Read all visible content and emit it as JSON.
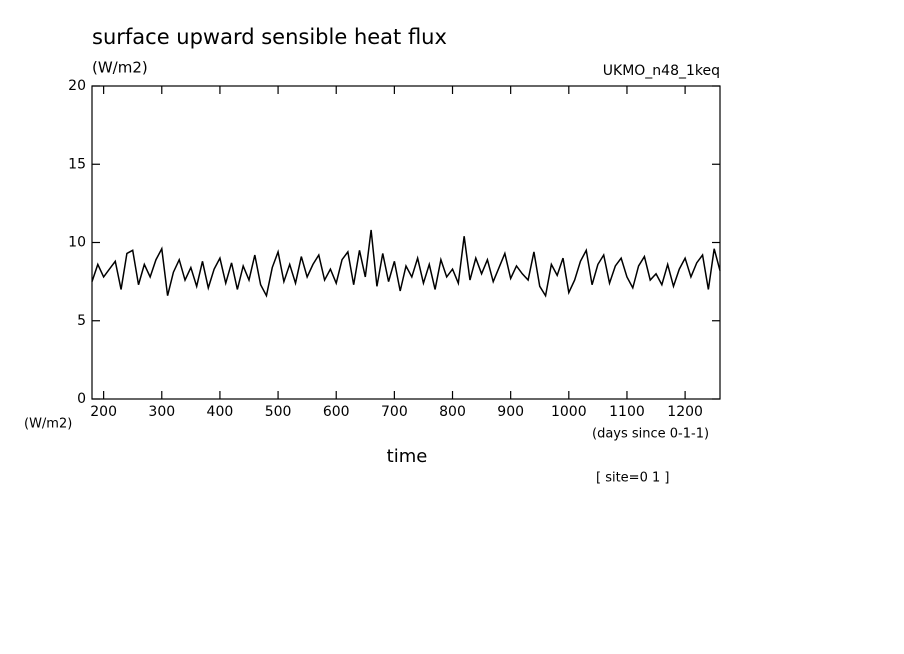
{
  "chart_data": {
    "type": "line",
    "title": "surface upward sensible heat flux",
    "y_unit": "(W/m2)",
    "model_label": "UKMO_n48_1keq",
    "y_axis_label": "(W/m2)",
    "x_unit": "(days since 0-1-1)",
    "x_axis_label": "time",
    "annotation": "[ site=0 1 ]",
    "color": "#000000",
    "xlim": [
      180,
      1260
    ],
    "ylim": [
      0,
      20
    ],
    "xticks": [
      200,
      300,
      400,
      500,
      600,
      700,
      800,
      900,
      1000,
      1100,
      1200
    ],
    "yticks": [
      0,
      5,
      10,
      15,
      20
    ],
    "x": [
      180,
      190,
      200,
      210,
      220,
      230,
      240,
      250,
      260,
      270,
      280,
      290,
      300,
      310,
      320,
      330,
      340,
      350,
      360,
      370,
      380,
      390,
      400,
      410,
      420,
      430,
      440,
      450,
      460,
      470,
      480,
      490,
      500,
      510,
      520,
      530,
      540,
      550,
      560,
      570,
      580,
      590,
      600,
      610,
      620,
      630,
      640,
      650,
      660,
      670,
      680,
      690,
      700,
      710,
      720,
      730,
      740,
      750,
      760,
      770,
      780,
      790,
      800,
      810,
      820,
      830,
      840,
      850,
      860,
      870,
      880,
      890,
      900,
      910,
      920,
      930,
      940,
      950,
      960,
      970,
      980,
      990,
      1000,
      1010,
      1020,
      1030,
      1040,
      1050,
      1060,
      1070,
      1080,
      1090,
      1100,
      1110,
      1120,
      1130,
      1140,
      1150,
      1160,
      1170,
      1180,
      1190,
      1200,
      1210,
      1220,
      1230,
      1240,
      1250,
      1260
    ],
    "values": [
      7.5,
      8.6,
      7.8,
      8.3,
      8.8,
      7.0,
      9.3,
      9.5,
      7.3,
      8.6,
      7.8,
      8.9,
      9.6,
      6.6,
      8.1,
      8.9,
      7.6,
      8.4,
      7.2,
      8.8,
      7.1,
      8.3,
      9.0,
      7.4,
      8.7,
      7.0,
      8.5,
      7.6,
      9.2,
      7.3,
      6.6,
      8.4,
      9.4,
      7.5,
      8.6,
      7.4,
      9.1,
      7.8,
      8.6,
      9.2,
      7.6,
      8.3,
      7.4,
      8.9,
      9.4,
      7.3,
      9.5,
      7.8,
      10.8,
      7.2,
      9.3,
      7.5,
      8.8,
      6.9,
      8.5,
      7.8,
      9.0,
      7.4,
      8.6,
      7.0,
      8.9,
      7.8,
      8.3,
      7.4,
      10.4,
      7.6,
      9.0,
      8.0,
      8.9,
      7.5,
      8.4,
      9.3,
      7.7,
      8.5,
      8.0,
      7.6,
      9.4,
      7.2,
      6.6,
      8.6,
      7.9,
      9.0,
      6.8,
      7.6,
      8.8,
      9.5,
      7.3,
      8.6,
      9.2,
      7.4,
      8.5,
      9.0,
      7.8,
      7.1,
      8.5,
      9.1,
      7.6,
      8.0,
      7.3,
      8.6,
      7.2,
      8.3,
      9.0,
      7.8,
      8.7,
      9.2,
      7.0,
      9.6,
      8.2
    ]
  }
}
